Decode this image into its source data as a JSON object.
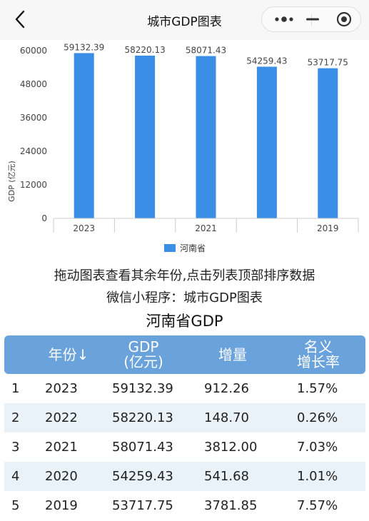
{
  "header": {
    "title": "城市GDP图表"
  },
  "chart_data": {
    "type": "bar",
    "categories": [
      "2023",
      "2022",
      "2021",
      "2020",
      "2019"
    ],
    "x_tick_labels": [
      "2023",
      "2021",
      "2019"
    ],
    "series": [
      {
        "name": "河南省",
        "values": [
          59132.39,
          58220.13,
          58071.43,
          54259.43,
          53717.75
        ]
      }
    ],
    "data_labels": [
      "59132.39",
      "58220.13",
      "58071.43",
      "54259.43",
      "53717.75"
    ],
    "ylabel": "GDP (亿元)",
    "ylim": [
      0,
      60000
    ],
    "yticks": [
      "0",
      "12000",
      "24000",
      "36000",
      "48000",
      "60000"
    ],
    "bar_color": "#3a8ee6",
    "legend_position": "bottom-center",
    "grid": false
  },
  "hints": {
    "line1": "拖动图表查看其余年份,点击列表顶部排序数据",
    "line2": "微信小程序：城市GDP图表"
  },
  "table": {
    "title": "河南省GDP",
    "headers": {
      "rank": "",
      "year": "年份↓",
      "gdp_line1": "GDP",
      "gdp_line2": "(亿元)",
      "increase": "增量",
      "growth_line1": "名义",
      "growth_line2": "增长率"
    },
    "rows": [
      {
        "rank": "1",
        "year": "2023",
        "gdp": "59132.39",
        "increase": "912.26",
        "growth": "1.57%"
      },
      {
        "rank": "2",
        "year": "2022",
        "gdp": "58220.13",
        "increase": "148.70",
        "growth": "0.26%"
      },
      {
        "rank": "3",
        "year": "2021",
        "gdp": "58071.43",
        "increase": "3812.00",
        "growth": "7.03%"
      },
      {
        "rank": "4",
        "year": "2020",
        "gdp": "54259.43",
        "increase": "541.68",
        "growth": "1.01%"
      },
      {
        "rank": "5",
        "year": "2019",
        "gdp": "53717.75",
        "increase": "3781.85",
        "growth": "7.57%"
      }
    ]
  },
  "theme": {
    "header_bg": "#6aa2dc",
    "row_alt_bg": "#e9f1f9"
  }
}
